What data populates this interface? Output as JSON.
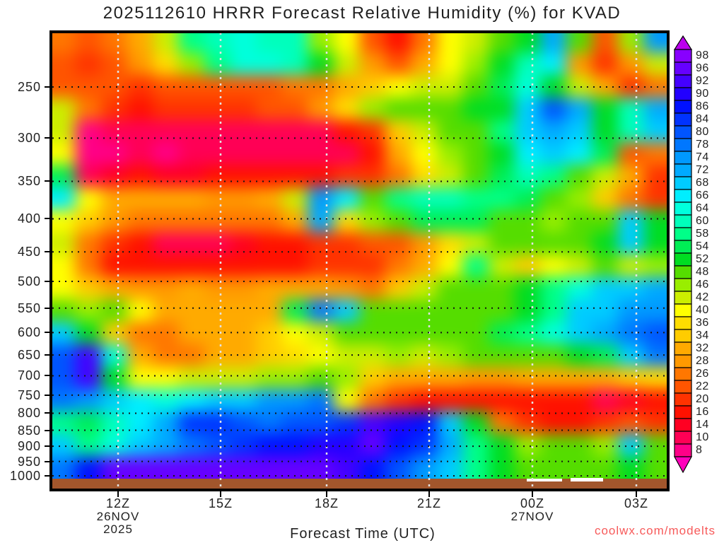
{
  "title": "2025112610 HRRR Forecast Relative Humidity (%) for KVAD",
  "watermark": {
    "text": "coolwx.com/modelts",
    "color": "#f75a5a"
  },
  "chart_data": {
    "type": "heatmap",
    "title": "2025112610 HRRR Forecast Relative Humidity (%) for KVAD",
    "xlabel": "Forecast Time (UTC)",
    "legend_position": "right",
    "grid": {
      "horizontal": "black-dotted",
      "vertical": "white-dashed"
    },
    "x_axis": {
      "ticks": [
        {
          "label": "12Z",
          "date": "26NOV",
          "year": "2025"
        },
        {
          "label": "15Z"
        },
        {
          "label": "18Z"
        },
        {
          "label": "21Z"
        },
        {
          "label": "00Z",
          "date": "27NOV"
        },
        {
          "label": "03Z"
        }
      ]
    },
    "y_axis": {
      "scale": "log",
      "ticks": [
        250,
        300,
        350,
        400,
        450,
        500,
        550,
        600,
        650,
        700,
        750,
        800,
        850,
        900,
        950,
        1000
      ]
    },
    "colorbar": {
      "thresholds_ascending": [
        8,
        10,
        14,
        16,
        20,
        22,
        26,
        28,
        32,
        34,
        36,
        40,
        42,
        46,
        48,
        52,
        54,
        58,
        60,
        64,
        66,
        68,
        72,
        74,
        78,
        80,
        84,
        86,
        90,
        92,
        96,
        98
      ],
      "colors_ascending": [
        "#ff0088",
        "#ff0055",
        "#ff0022",
        "#ff1100",
        "#ff3300",
        "#ff5500",
        "#ff7700",
        "#ff9900",
        "#ffaa00",
        "#ffcc00",
        "#ffdd00",
        "#ffff00",
        "#ccee00",
        "#99ee00",
        "#55dd00",
        "#00dd22",
        "#00ee55",
        "#00ff88",
        "#00ffbb",
        "#00ffdd",
        "#00eeff",
        "#00ccff",
        "#00aaff",
        "#0099ff",
        "#0077ff",
        "#0055ff",
        "#0033ff",
        "#0011ff",
        "#2200ff",
        "#4400ff",
        "#6600ff",
        "#8800ff"
      ],
      "below_color": "#ff00bb",
      "arrow_top_color": "#bb00ee",
      "arrow_bottom_color": "#ff00bb"
    },
    "ground_color": "#a2562c",
    "ground_gap_color": "#ffffff",
    "values_note": "Approximate relative humidity (%) sampled on a 24 (time, 10Z 26NOV - 04Z 27NOV) x 20 (pressure, ~210-1030 hPa, log-spaced) grid, read from the shaded contours",
    "rh_grid": [
      [
        26,
        22,
        26,
        33,
        43,
        58,
        62,
        64,
        62,
        60,
        47,
        41,
        23,
        19,
        27,
        40,
        44,
        50,
        52,
        72,
        50,
        24,
        46,
        76
      ],
      [
        24,
        20,
        23,
        29,
        37,
        46,
        59,
        64,
        65,
        63,
        52,
        44,
        29,
        22,
        32,
        40,
        46,
        52,
        60,
        66,
        29,
        21,
        29,
        44
      ],
      [
        24,
        23,
        22,
        20,
        23,
        23,
        24,
        24,
        24,
        26,
        27,
        32,
        34,
        40,
        43,
        44,
        48,
        56,
        64,
        52,
        44,
        33,
        20,
        26
      ],
      [
        43,
        27,
        20,
        19,
        20,
        20,
        20,
        21,
        23,
        24,
        29,
        37,
        46,
        48,
        50,
        50,
        52,
        52,
        68,
        81,
        72,
        52,
        62,
        72
      ],
      [
        42,
        9,
        11,
        10,
        11,
        11,
        11,
        11,
        11,
        12,
        13,
        16,
        21,
        34,
        44,
        48,
        50,
        58,
        68,
        72,
        68,
        52,
        62,
        70
      ],
      [
        41,
        9,
        9,
        10,
        9,
        10,
        11,
        11,
        11,
        11,
        12,
        13,
        17,
        32,
        41,
        46,
        50,
        52,
        66,
        68,
        66,
        56,
        23,
        27
      ],
      [
        56,
        11,
        14,
        17,
        15,
        15,
        17,
        17,
        17,
        17,
        17,
        21,
        20,
        27,
        37,
        44,
        50,
        56,
        62,
        59,
        50,
        44,
        33,
        21
      ],
      [
        67,
        40,
        33,
        32,
        32,
        32,
        29,
        29,
        32,
        42,
        75,
        66,
        50,
        58,
        60,
        60,
        59,
        58,
        56,
        50,
        46,
        34,
        26,
        21
      ],
      [
        40,
        34,
        29,
        27,
        27,
        26,
        26,
        26,
        27,
        32,
        72,
        37,
        46,
        50,
        56,
        57,
        56,
        50,
        48,
        46,
        48,
        50,
        70,
        52
      ],
      [
        44,
        27,
        20,
        17,
        13,
        13,
        13,
        15,
        17,
        17,
        20,
        20,
        22,
        24,
        29,
        37,
        44,
        48,
        50,
        50,
        48,
        52,
        68,
        52
      ],
      [
        41,
        26,
        19,
        17,
        17,
        17,
        19,
        18,
        17,
        18,
        20,
        20,
        21,
        26,
        33,
        40,
        58,
        44,
        34,
        40,
        44,
        48,
        45,
        46
      ],
      [
        40,
        34,
        32,
        29,
        29,
        32,
        29,
        29,
        32,
        32,
        32,
        29,
        27,
        34,
        44,
        50,
        50,
        50,
        52,
        58,
        64,
        68,
        70,
        72
      ],
      [
        50,
        47,
        48,
        40,
        33,
        32,
        32,
        32,
        32,
        55,
        78,
        70,
        50,
        50,
        50,
        50,
        50,
        50,
        52,
        59,
        68,
        70,
        76,
        75
      ],
      [
        68,
        52,
        34,
        27,
        26,
        32,
        33,
        33,
        34,
        40,
        44,
        48,
        50,
        50,
        50,
        50,
        50,
        56,
        59,
        64,
        68,
        72,
        78,
        81
      ],
      [
        83,
        93,
        64,
        33,
        27,
        27,
        32,
        33,
        34,
        37,
        41,
        43,
        44,
        46,
        44,
        46,
        48,
        50,
        50,
        50,
        52,
        56,
        70,
        78
      ],
      [
        83,
        93,
        52,
        40,
        41,
        42,
        43,
        44,
        46,
        46,
        48,
        46,
        34,
        33,
        32,
        32,
        29,
        29,
        32,
        32,
        33,
        33,
        34,
        37
      ],
      [
        78,
        75,
        68,
        66,
        64,
        66,
        68,
        70,
        75,
        76,
        79,
        40,
        27,
        20,
        17,
        17,
        17,
        17,
        17,
        17,
        16,
        12,
        14,
        17
      ],
      [
        58,
        57,
        60,
        67,
        72,
        84,
        85,
        81,
        79,
        81,
        83,
        85,
        93,
        91,
        88,
        70,
        52,
        27,
        21,
        19,
        19,
        21,
        24,
        21
      ],
      [
        70,
        59,
        64,
        68,
        72,
        78,
        83,
        84,
        87,
        87,
        90,
        91,
        96,
        88,
        85,
        72,
        59,
        52,
        46,
        48,
        48,
        46,
        70,
        48
      ],
      [
        79,
        88,
        96,
        97,
        97,
        97,
        96,
        96,
        97,
        97,
        96,
        93,
        87,
        81,
        75,
        68,
        59,
        52,
        48,
        48,
        48,
        50,
        52,
        48
      ]
    ]
  }
}
